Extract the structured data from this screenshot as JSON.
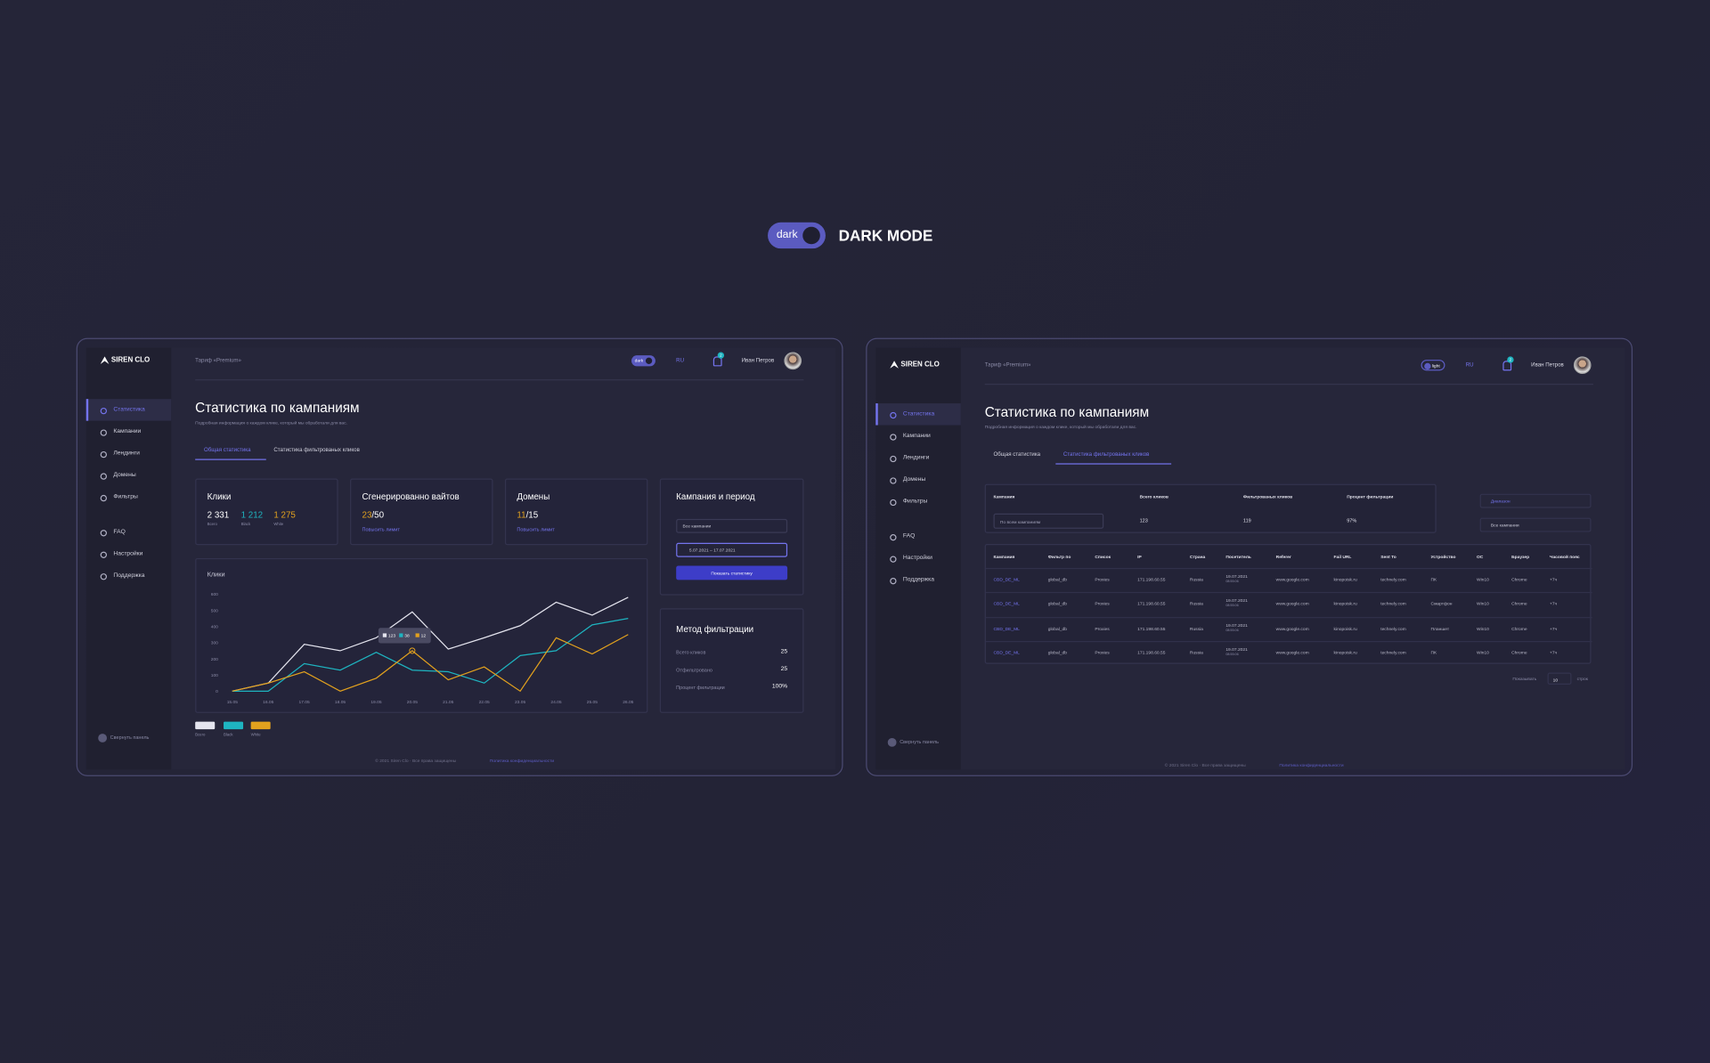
{
  "banner": {
    "toggle": "dark",
    "title": "DARK MODE"
  },
  "left": {
    "logo": "SIREN CLO",
    "plan": "Тариф «Premium»",
    "toggle": "dark",
    "lang": "RU",
    "badge": "2",
    "user": "Иван Петров",
    "nav": [
      "Статистика",
      "Кампании",
      "Лендинги",
      "Домены",
      "Фильтры",
      "FAQ",
      "Настройки",
      "Поддержка"
    ],
    "collapse": "Свернуть панель",
    "heading": "Статистика по кампаниям",
    "subheading": "Подробная информация о каждом клике, который мы обработали для вас.",
    "tabs": [
      "Общая статистика",
      "Статистика фильтрованых кликов"
    ],
    "clicks": {
      "title": "Клики",
      "values": [
        "2 331",
        "1 212",
        "1 275"
      ],
      "labels": [
        "Всего",
        "Black",
        "White"
      ]
    },
    "whites": {
      "title": "Сгенерированно вайтов",
      "used": "23",
      "total": "/50",
      "link": "Повысить лимит"
    },
    "domains": {
      "title": "Домены",
      "used": "11",
      "total": "/15",
      "link": "Повысить лимит"
    },
    "period": {
      "title": "Кампания и период",
      "select": "Все кампании",
      "dates": "5.07.2021 – 17.07.2021",
      "button": "Показать статистику"
    },
    "method": {
      "title": "Метод фильтрации",
      "rows": [
        [
          "Всего кликов",
          "25"
        ],
        [
          "Отфильтровано",
          "25"
        ],
        [
          "Процент фильтрации",
          "100%"
        ]
      ]
    },
    "tooltip": [
      "123",
      "38",
      "12"
    ],
    "footer": [
      "© 2021 Siren Clo · Все права защищены",
      "Политика конфиденциальности"
    ]
  },
  "chart_data": {
    "type": "line",
    "title": "Клики",
    "categories": [
      "15.05",
      "16.05",
      "17.05",
      "18.05",
      "19.05",
      "20.05",
      "21.05",
      "22.05",
      "23.05",
      "24.05",
      "25.05",
      "26.05"
    ],
    "series": [
      {
        "name": "Всего",
        "color": "#e4e4ee",
        "values": [
          0,
          50,
          290,
          250,
          330,
          490,
          260,
          330,
          405,
          550,
          470,
          580
        ]
      },
      {
        "name": "Black",
        "color": "#1eb4c0",
        "values": [
          0,
          0,
          170,
          130,
          240,
          130,
          120,
          50,
          220,
          250,
          410,
          450
        ]
      },
      {
        "name": "White",
        "color": "#e2a11e",
        "values": [
          0,
          50,
          120,
          0,
          80,
          250,
          70,
          150,
          0,
          330,
          230,
          350
        ]
      }
    ],
    "ylim": [
      0,
      600
    ],
    "yticks": [
      0,
      100,
      200,
      300,
      400,
      500,
      600
    ],
    "grid": false
  },
  "right": {
    "logo": "SIREN CLO",
    "plan": "Тариф «Premium»",
    "toggle": "light",
    "lang": "RU",
    "badge": "2",
    "user": "Иван Петров",
    "nav": [
      "Статистика",
      "Кампании",
      "Лендинги",
      "Домены",
      "Фильтры",
      "FAQ",
      "Настройки",
      "Поддержка"
    ],
    "collapse": "Свернуть панель",
    "heading": "Статистика по кампаниям",
    "subheading": "Подробная информация о каждом клике, который мы обработали для вас.",
    "tabs": [
      "Общая статистика",
      "Статистика фильтрованых кликов"
    ],
    "summary": {
      "header": [
        "Кампания",
        "Всего кликов",
        "Фильтрованых кликов",
        "Процент фильтрации"
      ],
      "select": "По всем кампаниям",
      "values": [
        "123",
        "119",
        "97%"
      ]
    },
    "filters": [
      "Диапазон",
      "Все кампании"
    ],
    "table": {
      "header": [
        "Кампания",
        "Фильтр по",
        "Список",
        "IP",
        "Страна",
        "Посетитель",
        "Referer",
        "Fail URL",
        "Sent To",
        "Устройство",
        "ОС",
        "Браузер",
        "Часовой пояс"
      ],
      "rows": [
        [
          "CBD_DE_ML",
          "global_db",
          "Proxies",
          "171.198.60.55",
          "Russia",
          [
            "19.07.2021",
            "08:55:06"
          ],
          "www.google.com",
          "kinopoisk.ru",
          "technely.com",
          "ПК",
          "Win10",
          "Chrome",
          "+7ч"
        ],
        [
          "CBD_DE_ML",
          "global_db",
          "Proxies",
          "171.198.60.55",
          "Russia",
          [
            "19.07.2021",
            "08:55:06"
          ],
          "www.google.com",
          "kinopoisk.ru",
          "technely.com",
          "Смартфон",
          "Win10",
          "Chrome",
          "+7ч"
        ],
        [
          "CBD_DE_ML",
          "global_db",
          "Proxies",
          "171.198.60.55",
          "Russia",
          [
            "19.07.2021",
            "08:55:06"
          ],
          "www.google.com",
          "kinopoisk.ru",
          "technely.com",
          "Планшет",
          "Win10",
          "Chrome",
          "+7ч"
        ],
        [
          "CBD_DE_ML",
          "global_db",
          "Proxies",
          "171.198.60.55",
          "Russia",
          [
            "19.07.2021",
            "08:55:06"
          ],
          "www.google.com",
          "kinopoisk.ru",
          "technely.com",
          "ПК",
          "Win10",
          "Chrome",
          "+7ч"
        ]
      ]
    },
    "pagination": {
      "label": "Показывать",
      "value": "10",
      "unit": "строк"
    },
    "footer": [
      "© 2021 Siren Clo · Все права защищены",
      "Политика конфиденциальности"
    ]
  }
}
